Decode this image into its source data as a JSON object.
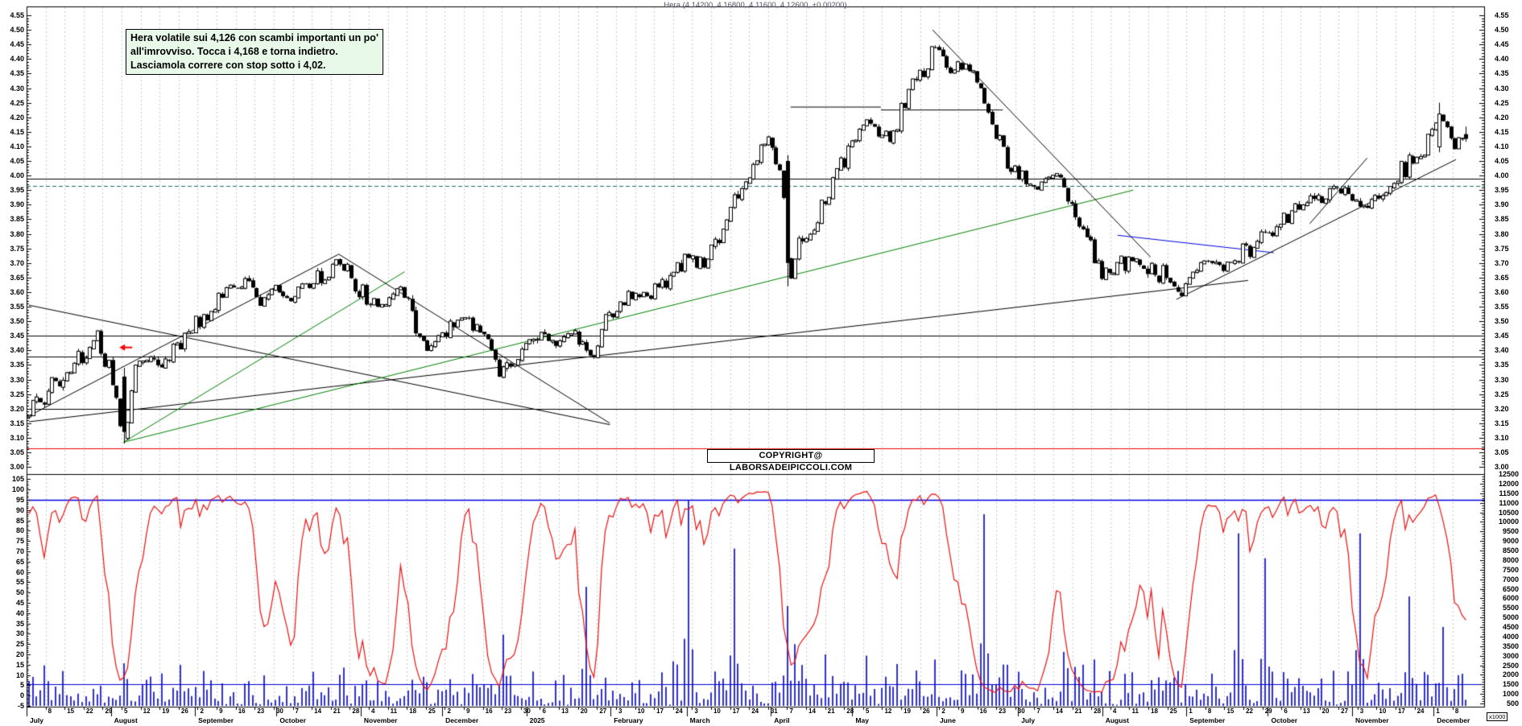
{
  "title": "Hera (4.14200, 4.16800, 4.11600, 4.12600, +0.00200)",
  "annotation": {
    "line1": "Hera volatile sui 4,126 con scambi importanti un po'",
    "line2": "all'imrovviso. Tocca i 4,168 e torna indietro.",
    "line3": "Lasciamola correre con stop sotto i 4,02."
  },
  "copyright": "COPYRIGHT@ LABORSADEIPICCOLI.COM",
  "x1000_label": "x1000",
  "colors": {
    "background": "#ffffff",
    "candle_outline": "#000000",
    "grid": "#c9c9c9",
    "volume_bar": "#3232cd",
    "oscillator_line": "#ee1111",
    "blue_level_line": "#0000dd",
    "red_level_line": "#ee0000",
    "teal_dashed_line": "#1f6b6b",
    "green_trendline": "#008000",
    "annotation_bg": "#e9f9e9",
    "title_text": "#55556a"
  },
  "axes": {
    "price_labels": [
      "4.55",
      "4.50",
      "4.45",
      "4.40",
      "4.35",
      "4.30",
      "4.25",
      "4.20",
      "4.15",
      "4.10",
      "4.05",
      "4.00",
      "3.95",
      "3.90",
      "3.85",
      "3.80",
      "3.75",
      "3.70",
      "3.65",
      "3.60",
      "3.55",
      "3.50",
      "3.45",
      "3.40",
      "3.35",
      "3.30",
      "3.25",
      "3.20",
      "3.15",
      "3.10",
      "3.05",
      "3.00"
    ],
    "oscillator_labels": [
      "105",
      "100",
      "95",
      "90",
      "85",
      "80",
      "75",
      "70",
      "65",
      "60",
      "55",
      "50",
      "45",
      "40",
      "35",
      "30",
      "25",
      "20",
      "15",
      "10",
      "5",
      "0",
      "-5"
    ],
    "volume_labels": [
      "12500",
      "12000",
      "11500",
      "11000",
      "10500",
      "10000",
      "9500",
      "9000",
      "8500",
      "8000",
      "7500",
      "7000",
      "6500",
      "6000",
      "5500",
      "5000",
      "4500",
      "4000",
      "3500",
      "3000",
      "2500",
      "2000",
      "1500",
      "1000",
      "500"
    ],
    "price_min": 3.0,
    "price_max": 4.55,
    "months": [
      {
        "label": "July",
        "start": 0,
        "weeks": [
          8,
          15,
          22,
          29
        ]
      },
      {
        "label": "August",
        "start": 31,
        "weeks": [
          5,
          12,
          19,
          26
        ]
      },
      {
        "label": "September",
        "start": 62,
        "weeks": [
          2,
          9,
          16,
          23
        ]
      },
      {
        "label": "October",
        "start": 92,
        "weeks": [
          30,
          7,
          14,
          21,
          28
        ]
      },
      {
        "label": "November",
        "start": 123,
        "weeks": [
          4,
          11,
          18,
          25
        ]
      },
      {
        "label": "December",
        "start": 153,
        "weeks": [
          2,
          9,
          16,
          23,
          30
        ]
      },
      {
        "label": "2025",
        "start": 184,
        "weeks": [
          6,
          13,
          20,
          27
        ]
      },
      {
        "label": "February",
        "start": 215,
        "weeks": [
          3,
          10,
          17,
          24
        ]
      },
      {
        "label": "March",
        "start": 243,
        "weeks": [
          3,
          10,
          17,
          24,
          31
        ]
      },
      {
        "label": "April",
        "start": 274,
        "weeks": [
          7,
          14,
          21,
          28
        ]
      },
      {
        "label": "May",
        "start": 304,
        "weeks": [
          5,
          12,
          19,
          26
        ]
      },
      {
        "label": "June",
        "start": 335,
        "weeks": [
          2,
          9,
          16,
          23,
          30
        ]
      },
      {
        "label": "July",
        "start": 365,
        "weeks": [
          7,
          14,
          21,
          28
        ]
      },
      {
        "label": "August",
        "start": 396,
        "weeks": [
          4,
          11,
          18,
          25
        ]
      },
      {
        "label": "September",
        "start": 427,
        "weeks": [
          1,
          8,
          15,
          22,
          29
        ]
      },
      {
        "label": "October",
        "start": 457,
        "weeks": [
          6,
          13,
          20,
          27
        ]
      },
      {
        "label": "November",
        "start": 488,
        "weeks": [
          3,
          10,
          17,
          24
        ]
      },
      {
        "label": "December",
        "start": 518,
        "weeks": [
          1,
          8
        ]
      }
    ]
  },
  "chart_data": {
    "type": "candlestick",
    "instrument": "Hera",
    "timeframe": "daily, July 2024 - December 2025",
    "last_candle": {
      "open": 4.142,
      "high": 4.168,
      "low": 4.116,
      "close": 4.126,
      "change": 0.002
    },
    "price_keypoints": [
      [
        0.0,
        3.18
      ],
      [
        0.017,
        3.28
      ],
      [
        0.047,
        3.44
      ],
      [
        0.055,
        3.35
      ],
      [
        0.066,
        3.1
      ],
      [
        0.074,
        3.33
      ],
      [
        0.082,
        3.4
      ],
      [
        0.091,
        3.33
      ],
      [
        0.105,
        3.43
      ],
      [
        0.121,
        3.52
      ],
      [
        0.138,
        3.6
      ],
      [
        0.151,
        3.63
      ],
      [
        0.161,
        3.56
      ],
      [
        0.171,
        3.62
      ],
      [
        0.181,
        3.56
      ],
      [
        0.195,
        3.62
      ],
      [
        0.216,
        3.72
      ],
      [
        0.228,
        3.62
      ],
      [
        0.245,
        3.55
      ],
      [
        0.261,
        3.62
      ],
      [
        0.269,
        3.45
      ],
      [
        0.279,
        3.4
      ],
      [
        0.289,
        3.47
      ],
      [
        0.302,
        3.51
      ],
      [
        0.316,
        3.45
      ],
      [
        0.326,
        3.32
      ],
      [
        0.336,
        3.35
      ],
      [
        0.346,
        3.41
      ],
      [
        0.356,
        3.46
      ],
      [
        0.366,
        3.42
      ],
      [
        0.376,
        3.47
      ],
      [
        0.386,
        3.42
      ],
      [
        0.391,
        3.38
      ],
      [
        0.4,
        3.5
      ],
      [
        0.41,
        3.55
      ],
      [
        0.42,
        3.6
      ],
      [
        0.43,
        3.58
      ],
      [
        0.44,
        3.62
      ],
      [
        0.45,
        3.66
      ],
      [
        0.46,
        3.72
      ],
      [
        0.47,
        3.7
      ],
      [
        0.48,
        3.78
      ],
      [
        0.49,
        3.9
      ],
      [
        0.5,
        4.0
      ],
      [
        0.51,
        4.1
      ],
      [
        0.517,
        4.13
      ],
      [
        0.525,
        3.95
      ],
      [
        0.529,
        3.65
      ],
      [
        0.536,
        3.8
      ],
      [
        0.544,
        3.78
      ],
      [
        0.554,
        3.92
      ],
      [
        0.564,
        4.02
      ],
      [
        0.574,
        4.1
      ],
      [
        0.584,
        4.2
      ],
      [
        0.594,
        4.12
      ],
      [
        0.604,
        4.18
      ],
      [
        0.614,
        4.3
      ],
      [
        0.624,
        4.38
      ],
      [
        0.63,
        4.45
      ],
      [
        0.641,
        4.35
      ],
      [
        0.651,
        4.4
      ],
      [
        0.659,
        4.32
      ],
      [
        0.666,
        4.25
      ],
      [
        0.672,
        4.17
      ],
      [
        0.681,
        4.05
      ],
      [
        0.691,
        3.98
      ],
      [
        0.701,
        3.95
      ],
      [
        0.711,
        4.0
      ],
      [
        0.721,
        3.95
      ],
      [
        0.731,
        3.85
      ],
      [
        0.741,
        3.72
      ],
      [
        0.751,
        3.65
      ],
      [
        0.761,
        3.7
      ],
      [
        0.771,
        3.72
      ],
      [
        0.781,
        3.68
      ],
      [
        0.791,
        3.65
      ],
      [
        0.801,
        3.6
      ],
      [
        0.811,
        3.68
      ],
      [
        0.821,
        3.7
      ],
      [
        0.831,
        3.68
      ],
      [
        0.841,
        3.72
      ],
      [
        0.852,
        3.76
      ],
      [
        0.862,
        3.8
      ],
      [
        0.872,
        3.85
      ],
      [
        0.882,
        3.88
      ],
      [
        0.892,
        3.9
      ],
      [
        0.902,
        3.94
      ],
      [
        0.912,
        3.96
      ],
      [
        0.922,
        3.92
      ],
      [
        0.932,
        3.88
      ],
      [
        0.942,
        3.95
      ],
      [
        0.952,
        4.0
      ],
      [
        0.962,
        4.05
      ],
      [
        0.972,
        4.1
      ],
      [
        0.982,
        4.21
      ],
      [
        0.989,
        4.12
      ],
      [
        0.995,
        4.1
      ],
      [
        1.0,
        4.126
      ]
    ],
    "special_candles": [
      {
        "t": 0.0655,
        "o": 3.31,
        "h": 3.34,
        "l": 3.08,
        "c": 3.12
      },
      {
        "t": 0.527,
        "o": 4.05,
        "h": 4.07,
        "l": 3.62,
        "c": 3.7
      },
      {
        "t": 0.982,
        "o": 4.1,
        "h": 4.25,
        "l": 4.08,
        "c": 4.21
      }
    ],
    "hlines": [
      {
        "price": 3.45,
        "color": "#000000",
        "style": "solid"
      },
      {
        "price": 3.38,
        "color": "#000000",
        "style": "solid"
      },
      {
        "price": 3.2,
        "color": "#000000",
        "style": "solid"
      },
      {
        "price": 3.99,
        "color": "#000000",
        "style": "solid"
      },
      {
        "price": 3.965,
        "color": "#1f6b6b",
        "style": "dashed"
      },
      {
        "price": 3.065,
        "color": "#ee0000",
        "style": "solid"
      }
    ],
    "trendlines": [
      {
        "t1": 0.0,
        "p1": 3.555,
        "t2": 0.405,
        "p2": 3.145,
        "color": "#000000"
      },
      {
        "t1": 0.0,
        "p1": 3.175,
        "t2": 0.216,
        "p2": 3.73,
        "color": "#000000"
      },
      {
        "t1": 0.216,
        "p1": 3.73,
        "t2": 0.405,
        "p2": 3.15,
        "color": "#000000"
      },
      {
        "t1": 0.0,
        "p1": 3.155,
        "t2": 0.85,
        "p2": 3.64,
        "color": "#000000"
      },
      {
        "t1": 0.066,
        "p1": 3.085,
        "t2": 0.262,
        "p2": 3.67,
        "color": "#008000"
      },
      {
        "t1": 0.066,
        "p1": 3.085,
        "t2": 0.77,
        "p2": 3.95,
        "color": "#008000"
      },
      {
        "t1": 0.63,
        "p1": 4.5,
        "t2": 0.782,
        "p2": 3.72,
        "color": "#000000"
      },
      {
        "t1": 0.759,
        "p1": 3.795,
        "t2": 0.868,
        "p2": 3.735,
        "color": "#0000dd"
      },
      {
        "t1": 0.8,
        "p1": 3.575,
        "t2": 0.995,
        "p2": 4.055,
        "color": "#000000"
      },
      {
        "t1": 0.893,
        "p1": 3.835,
        "t2": 0.933,
        "p2": 4.06,
        "color": "#000000"
      },
      {
        "t1": 0.531,
        "p1": 4.235,
        "t2": 0.594,
        "p2": 4.235,
        "color": "#000000"
      },
      {
        "t1": 0.594,
        "p1": 4.225,
        "t2": 0.679,
        "p2": 4.225,
        "color": "#000000"
      }
    ],
    "marker": {
      "t": 0.063,
      "price": 3.41,
      "shape": "left-arrow",
      "color": "#ff0000"
    },
    "oscillator": {
      "type": "stochastic-like",
      "color": "#ee1111",
      "range": [
        -5,
        105
      ],
      "overbought_line": 95
    },
    "volume": {
      "unit": "x1000",
      "baseline_range": [
        500,
        2200
      ],
      "threshold_line": 1500,
      "spikes": [
        [
          0.066,
          2600
        ],
        [
          0.121,
          2200
        ],
        [
          0.216,
          2000
        ],
        [
          0.275,
          1900
        ],
        [
          0.33,
          4100
        ],
        [
          0.389,
          6600
        ],
        [
          0.458,
          11100
        ],
        [
          0.492,
          8600
        ],
        [
          0.527,
          5600
        ],
        [
          0.532,
          3600
        ],
        [
          0.584,
          3000
        ],
        [
          0.63,
          2800
        ],
        [
          0.666,
          10400
        ],
        [
          0.72,
          3200
        ],
        [
          0.741,
          2800
        ],
        [
          0.843,
          9400
        ],
        [
          0.861,
          8100
        ],
        [
          0.927,
          9400
        ],
        [
          0.96,
          6100
        ],
        [
          0.985,
          4500
        ]
      ]
    }
  }
}
